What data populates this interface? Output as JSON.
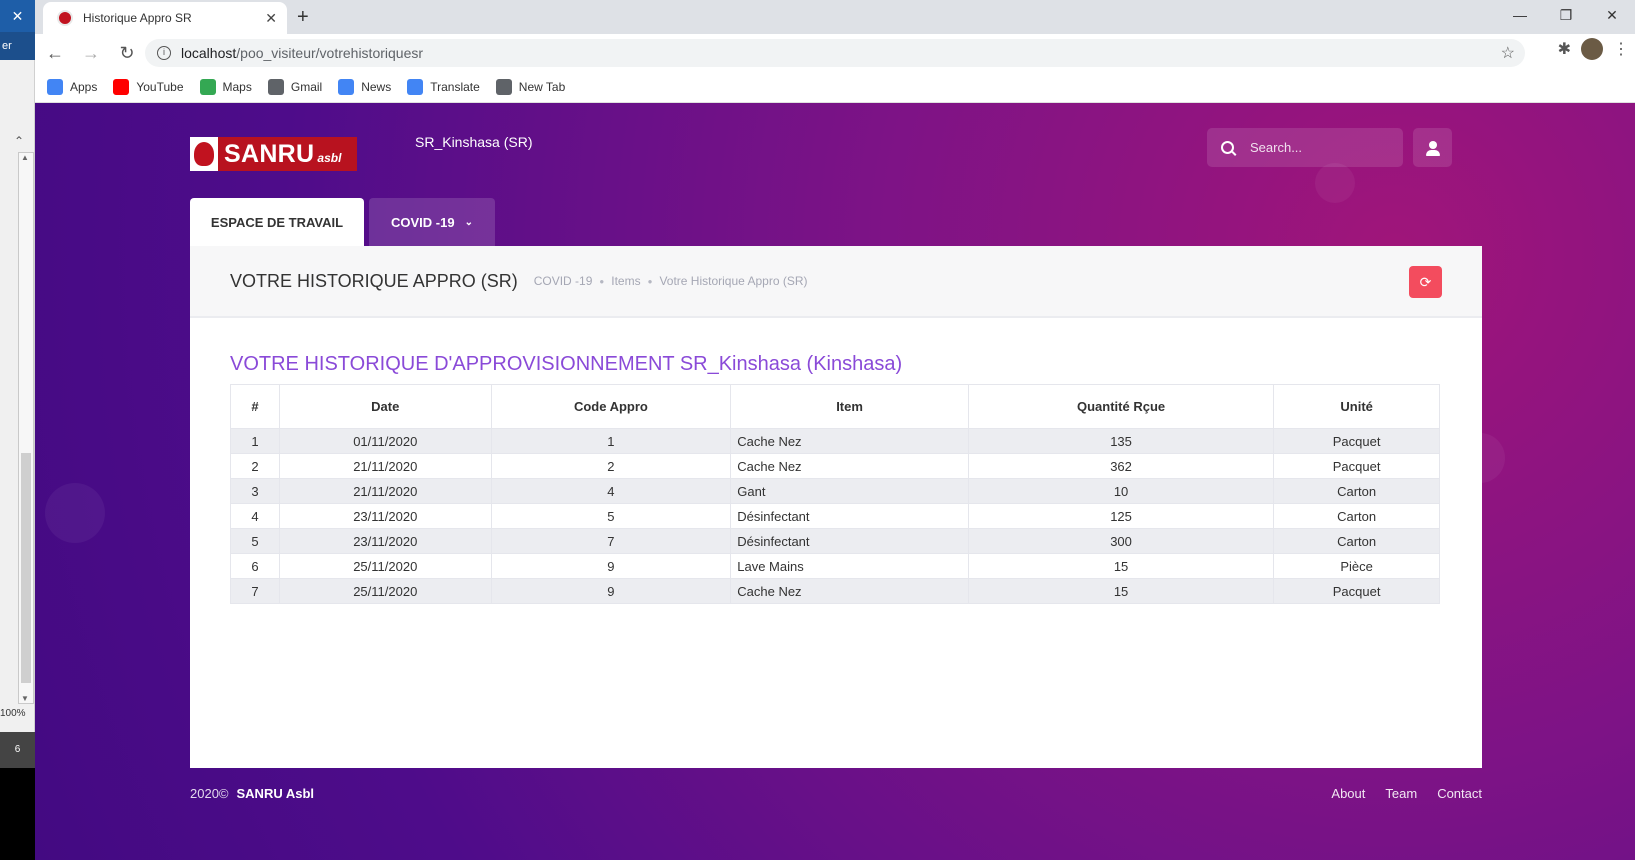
{
  "left_strip": {
    "top_glyph": "✕",
    "label": "er",
    "zoom": "100%",
    "badge": "6"
  },
  "browser": {
    "tab_title": "Historique Appro SR",
    "url_host": "localhost",
    "url_path": "/poo_visiteur/votrehistoriquesr",
    "bookmarks": [
      {
        "label": "Apps",
        "icon": "apps-grid-icon",
        "color": "#4285f4"
      },
      {
        "label": "YouTube",
        "icon": "youtube-icon",
        "color": "#ff0000"
      },
      {
        "label": "Maps",
        "icon": "maps-icon",
        "color": "#34a853"
      },
      {
        "label": "Gmail",
        "icon": "globe-icon",
        "color": "#5f6368"
      },
      {
        "label": "News",
        "icon": "news-icon",
        "color": "#4285f4"
      },
      {
        "label": "Translate",
        "icon": "translate-icon",
        "color": "#4285f4"
      },
      {
        "label": "New Tab",
        "icon": "globe-icon",
        "color": "#5f6368"
      }
    ]
  },
  "header": {
    "logo_text": "SANRU",
    "logo_suffix": "asbl",
    "site_name": "SR_Kinshasa (SR)",
    "search_placeholder": "Search..."
  },
  "nav": {
    "tabs": [
      {
        "label": "ESPACE DE TRAVAIL",
        "active": true
      },
      {
        "label": "COVID -19",
        "active": false
      }
    ]
  },
  "card": {
    "title": "VOTRE HISTORIQUE APPRO (SR)",
    "breadcrumb": [
      "COVID -19",
      "Items",
      "Votre Historique Appro (SR)"
    ],
    "section_title": "VOTRE HISTORIQUE D'APPROVISIONNEMENT SR_Kinshasa (Kinshasa)",
    "accent_color": "#8a4ad8",
    "refresh_color": "#f34c5e"
  },
  "table": {
    "headers": [
      "#",
      "Date",
      "Code Appro",
      "Item",
      "Quantité Rçue",
      "Unité"
    ],
    "rows": [
      [
        "1",
        "01/11/2020",
        "1",
        "Cache Nez",
        "135",
        "Pacquet"
      ],
      [
        "2",
        "21/11/2020",
        "2",
        "Cache Nez",
        "362",
        "Pacquet"
      ],
      [
        "3",
        "21/11/2020",
        "4",
        "Gant",
        "10",
        "Carton"
      ],
      [
        "4",
        "23/11/2020",
        "5",
        "Désinfectant",
        "125",
        "Carton"
      ],
      [
        "5",
        "23/11/2020",
        "7",
        "Désinfectant",
        "300",
        "Carton"
      ],
      [
        "6",
        "25/11/2020",
        "9",
        "Lave Mains",
        "15",
        "Pièce"
      ],
      [
        "7",
        "25/11/2020",
        "9",
        "Cache Nez",
        "15",
        "Pacquet"
      ]
    ]
  },
  "footer": {
    "year": "2020©",
    "org": "SANRU Asbl",
    "links": [
      "About",
      "Team",
      "Contact"
    ]
  }
}
